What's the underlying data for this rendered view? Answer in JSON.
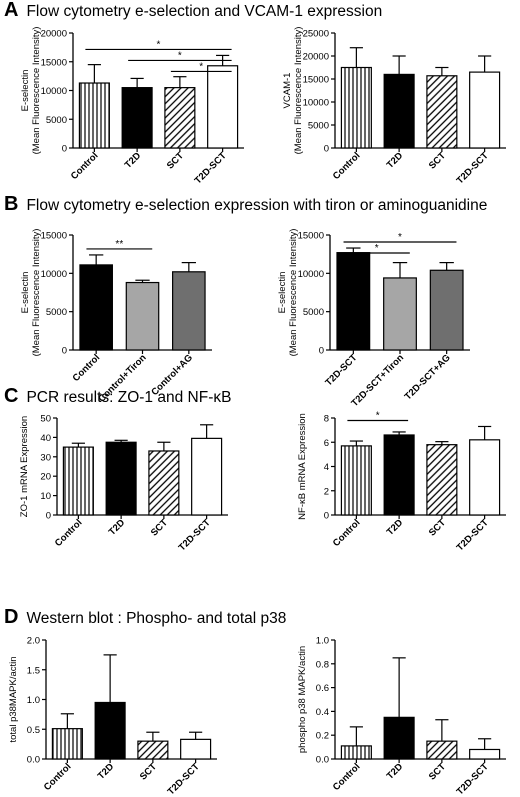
{
  "panels": [
    {
      "letter": "A",
      "title": "Flow cytometry e-selection and VCAM-1 expression"
    },
    {
      "letter": "B",
      "title": "Flow cytometry e-selection expression with tiron or aminoguanidine"
    },
    {
      "letter": "C",
      "title": "PCR results: ZO-1 and NF-κB"
    },
    {
      "letter": "D",
      "title": "Western blot : Phospho- and total p38"
    }
  ],
  "chart_data": [
    {
      "id": "A1",
      "type": "bar",
      "panel": "A",
      "ylabel": [
        "E-selectin",
        "(Mean Fluorescence Intensity)"
      ],
      "ylim": [
        0,
        20000
      ],
      "yticks": [
        "0",
        "5000",
        "10000",
        "15000",
        "20000"
      ],
      "categories": [
        "Control",
        "T2D",
        "SCT",
        "T2D-SCT"
      ],
      "values": [
        11300,
        10500,
        10500,
        14300
      ],
      "errors": [
        3200,
        1600,
        1900,
        1800
      ],
      "fills": [
        "vstripe",
        "black",
        "diag",
        "white"
      ],
      "significance": [
        {
          "from": 0,
          "to": 3,
          "label": "*"
        },
        {
          "from": 1,
          "to": 3,
          "label": "*"
        },
        {
          "from": 2,
          "to": 3,
          "label": "*"
        }
      ]
    },
    {
      "id": "A2",
      "type": "bar",
      "panel": "A",
      "ylabel": [
        "VCAM-1",
        "(Mean Fluorescence Intensity)"
      ],
      "ylim": [
        0,
        25000
      ],
      "yticks": [
        "0",
        "5000",
        "10000",
        "15000",
        "20000",
        "25000"
      ],
      "categories": [
        "Control",
        "T2D",
        "SCT",
        "T2D-SCT"
      ],
      "values": [
        17500,
        16000,
        15700,
        16500
      ],
      "errors": [
        4300,
        4000,
        1800,
        3500
      ],
      "fills": [
        "vstripe",
        "black",
        "diag",
        "white"
      ],
      "significance": []
    },
    {
      "id": "B1",
      "type": "bar",
      "panel": "B",
      "ylabel": [
        "E-selectin",
        "(Mean Fluorescence Intensity)"
      ],
      "ylim": [
        0,
        15000
      ],
      "yticks": [
        "0",
        "5000",
        "10000",
        "15000"
      ],
      "categories": [
        "Control",
        "Control+Tiron",
        "Control+AG"
      ],
      "values": [
        11100,
        8800,
        10200
      ],
      "errors": [
        1300,
        300,
        1200
      ],
      "fills": [
        "black",
        "lightgray",
        "darkgray"
      ],
      "significance": [
        {
          "from": 0,
          "to": 1,
          "label": "**"
        }
      ]
    },
    {
      "id": "B2",
      "type": "bar",
      "panel": "B",
      "ylabel": [
        "E-selectin",
        "(Mean Fluorescence Intensity)"
      ],
      "ylim": [
        0,
        15000
      ],
      "yticks": [
        "0",
        "5000",
        "10000",
        "15000"
      ],
      "categories": [
        "T2D-SCT",
        "T2D-SCT+Tiron",
        "T2D-SCT+AG"
      ],
      "values": [
        12700,
        9400,
        10400
      ],
      "errors": [
        600,
        2000,
        1000
      ],
      "fills": [
        "black",
        "lightgray",
        "darkgray"
      ],
      "significance": [
        {
          "from": 0,
          "to": 1,
          "label": "*"
        },
        {
          "from": 0,
          "to": 2,
          "label": "*"
        }
      ]
    },
    {
      "id": "C1",
      "type": "bar",
      "panel": "C",
      "ylabel": [
        "ZO-1 mRNA Expression"
      ],
      "ylim": [
        0,
        50
      ],
      "yticks": [
        "0",
        "10",
        "20",
        "30",
        "40",
        "50"
      ],
      "categories": [
        "Control",
        "T2D",
        "SCT",
        "T2D-SCT"
      ],
      "values": [
        35,
        37.5,
        33,
        39.5
      ],
      "errors": [
        2,
        1,
        4.5,
        7
      ],
      "fills": [
        "vstripe",
        "black",
        "diag",
        "white"
      ],
      "significance": []
    },
    {
      "id": "C2",
      "type": "bar",
      "panel": "C",
      "ylabel": [
        "NF-κB mRNA Expression"
      ],
      "ylim": [
        0,
        8
      ],
      "yticks": [
        "0",
        "2",
        "4",
        "6",
        "8"
      ],
      "categories": [
        "Control",
        "T2D",
        "SCT",
        "T2D-SCT"
      ],
      "values": [
        5.7,
        6.6,
        5.8,
        6.2
      ],
      "errors": [
        0.4,
        0.25,
        0.25,
        1.1
      ],
      "fills": [
        "vstripe",
        "black",
        "diag",
        "white"
      ],
      "significance": [
        {
          "from": 0,
          "to": 1,
          "label": "*"
        }
      ]
    },
    {
      "id": "D1",
      "type": "bar",
      "panel": "D",
      "ylabel": [
        "total p38MAPK/actin"
      ],
      "ylim": [
        0,
        2.0
      ],
      "yticks": [
        "0.0",
        "0.5",
        "1.0",
        "1.5",
        "2.0"
      ],
      "categories": [
        "Control",
        "T2D",
        "SCT",
        "T2D-SCT"
      ],
      "values": [
        0.51,
        0.95,
        0.3,
        0.33
      ],
      "errors": [
        0.25,
        0.8,
        0.15,
        0.12
      ],
      "fills": [
        "vstripe",
        "black",
        "diag",
        "white"
      ],
      "significance": []
    },
    {
      "id": "D2",
      "type": "bar",
      "panel": "D",
      "ylabel": [
        "phospho p38 MAPK/actin"
      ],
      "ylim": [
        0,
        1.0
      ],
      "yticks": [
        "0.0",
        "0.2",
        "0.4",
        "0.6",
        "0.8",
        "1.0"
      ],
      "categories": [
        "Control",
        "T2D",
        "SCT",
        "T2D-SCT"
      ],
      "values": [
        0.11,
        0.35,
        0.15,
        0.08
      ],
      "errors": [
        0.16,
        0.5,
        0.18,
        0.09
      ],
      "fills": [
        "vstripe",
        "black",
        "diag",
        "white"
      ],
      "significance": []
    }
  ],
  "colors": {
    "lightgray": "#a6a6a6",
    "darkgray": "#6f6f6f",
    "black": "#000000",
    "white": "#ffffff"
  }
}
